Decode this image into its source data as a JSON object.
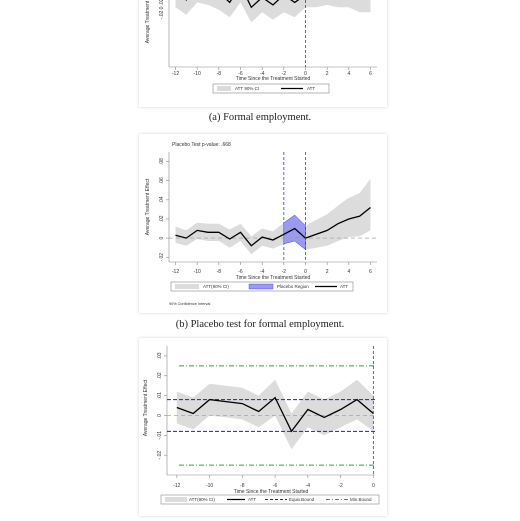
{
  "captions": {
    "a": "(a) Formal employment.",
    "b": "(b) Placebo test for formal employment."
  },
  "chart_data": [
    {
      "type": "line",
      "panel": "a",
      "xlabel": "Time Since the Treatment Started",
      "ylabel": "Average Treatment Effect",
      "x_ticks": [
        -12,
        -10,
        -8,
        -6,
        -4,
        -2,
        0,
        2,
        4,
        6
      ],
      "y_ticks_visible": [
        ".02",
        "0",
        "-.02"
      ],
      "x": [
        -12,
        -11,
        -10,
        -9,
        -8,
        -7,
        -6,
        -5,
        -4,
        -3,
        -2,
        -1,
        0,
        1,
        2,
        3,
        4,
        5,
        6
      ],
      "series": [
        {
          "name": "ATT",
          "values": [
            0.001,
            -0.003,
            0.002,
            0.001,
            0.0,
            -0.004,
            0.003,
            -0.006,
            -0.002,
            -0.005,
            -0.001,
            -0.004,
            -0.001,
            0.001,
            0.003,
            0.002,
            0.004,
            0.003,
            0.005
          ]
        }
      ],
      "ci_lower": [
        -0.006,
        -0.009,
        -0.004,
        -0.005,
        -0.007,
        -0.01,
        -0.004,
        -0.012,
        -0.008,
        -0.011,
        -0.008,
        -0.01,
        -0.006,
        -0.006,
        -0.005,
        -0.006,
        -0.006,
        -0.008,
        -0.008
      ],
      "ci_upper": [
        0.008,
        0.004,
        0.008,
        0.007,
        0.007,
        0.002,
        0.01,
        0.0,
        0.004,
        0.001,
        0.006,
        0.002,
        0.004,
        0.008,
        0.011,
        0.01,
        0.014,
        0.014,
        0.018
      ],
      "ylim": [
        -0.03,
        0.005
      ],
      "legend": [
        "ATT 90% CI",
        "ATT"
      ]
    },
    {
      "type": "line",
      "panel": "b",
      "title": "Placebo Test p-value: .668",
      "xlabel": "Time Since the Treatment Started",
      "ylabel": "Average Treatment Effect",
      "x_ticks": [
        -12,
        -10,
        -8,
        -6,
        -4,
        -2,
        0,
        2,
        4,
        6
      ],
      "y_ticks": [
        -0.02,
        0,
        0.02,
        0.04,
        0.06,
        0.08
      ],
      "y_tick_labels": [
        "-.02",
        "0",
        ".02",
        ".04",
        ".06",
        ".08"
      ],
      "x": [
        -12,
        -11,
        -10,
        -9,
        -8,
        -7,
        -6,
        -5,
        -4,
        -3,
        -2,
        -1,
        0,
        1,
        2,
        3,
        4,
        5,
        6
      ],
      "series": [
        {
          "name": "ATT",
          "values": [
            0.003,
            0.0,
            0.008,
            0.006,
            0.006,
            -0.001,
            0.006,
            -0.008,
            0.001,
            -0.002,
            0.004,
            0.01,
            0.0,
            0.004,
            0.008,
            0.015,
            0.02,
            0.023,
            0.032
          ]
        }
      ],
      "ci_lower": [
        -0.005,
        -0.008,
        -0.001,
        -0.003,
        -0.003,
        -0.01,
        -0.003,
        -0.017,
        -0.008,
        -0.011,
        -0.006,
        -0.003,
        -0.012,
        -0.01,
        -0.008,
        -0.003,
        0.001,
        0.002,
        0.008
      ],
      "ci_upper": [
        0.012,
        0.008,
        0.016,
        0.015,
        0.015,
        0.009,
        0.015,
        0.002,
        0.01,
        0.007,
        0.016,
        0.024,
        0.013,
        0.019,
        0.025,
        0.034,
        0.042,
        0.047,
        0.062
      ],
      "placebo_region": [
        -2,
        0
      ],
      "ylim": [
        -0.025,
        0.09
      ],
      "legend": [
        "ATT(90% CI)",
        "Placebo Region",
        "ATT"
      ],
      "note": "90% Confidence Interval"
    },
    {
      "type": "line",
      "panel": "c",
      "xlabel": "Time Since the Treatment Started",
      "ylabel": "Average Treatment Effect",
      "x_ticks": [
        -12,
        -10,
        -8,
        -6,
        -4,
        -2,
        0
      ],
      "y_ticks": [
        -0.02,
        -0.01,
        0,
        0.01,
        0.02,
        0.03
      ],
      "y_tick_labels": [
        "-.02",
        "-.01",
        "0",
        ".01",
        ".02",
        ".03"
      ],
      "x": [
        -12,
        -11,
        -10,
        -9,
        -8,
        -7,
        -6,
        -5,
        -4,
        -3,
        -2,
        -1,
        0
      ],
      "series": [
        {
          "name": "ATT",
          "values": [
            0.004,
            0.001,
            0.008,
            0.007,
            0.006,
            0.002,
            0.009,
            -0.008,
            0.003,
            -0.001,
            0.003,
            0.008,
            0.001
          ]
        }
      ],
      "ci_lower": [
        -0.004,
        -0.007,
        0.0,
        -0.001,
        -0.002,
        -0.006,
        0.0,
        -0.017,
        -0.006,
        -0.01,
        -0.006,
        -0.002,
        -0.008
      ],
      "ci_upper": [
        0.012,
        0.009,
        0.016,
        0.015,
        0.014,
        0.01,
        0.018,
        0.001,
        0.012,
        0.008,
        0.012,
        0.018,
        0.01
      ],
      "equiv_bound": 0.008,
      "min_bound": 0.025,
      "ylim": [
        -0.03,
        0.035
      ],
      "legend": [
        "ATT(90% CI)",
        "ATT",
        "Equiv.Bound",
        "Min.Bound"
      ]
    }
  ],
  "colors": {
    "ci_fill": "#dcdcdc",
    "att_line": "#000000",
    "placebo_fill": "#9a9af0",
    "placebo_stroke": "#3a3ad0",
    "equiv_bound": "#1a1ad0",
    "min_bound": "#3c9a3c",
    "vline": "#555555"
  }
}
